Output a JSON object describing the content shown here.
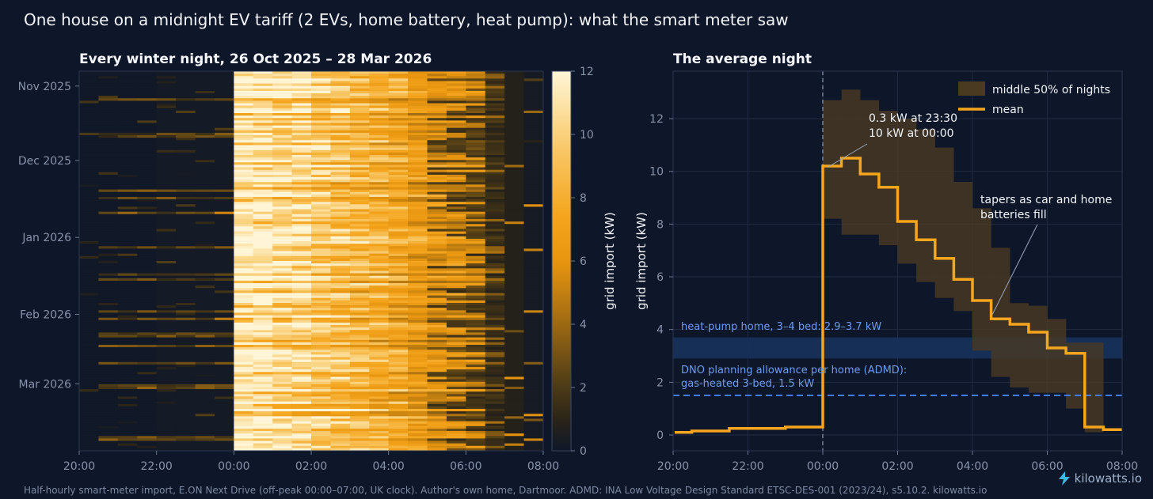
{
  "title": "One house on a midnight EV tariff (2 EVs, home battery, heat pump): what the smart meter saw",
  "footer": "Half-hourly smart-meter import, E.ON Next Drive (off-peak 00:00–07:00, UK clock). Author's own home, Dartmoor. ADMD: INA Low Voltage Design Standard ETSC-DES-001 (2023/24), s5.10.2. kilowatts.io",
  "brand": {
    "name": "kilowatts.io",
    "icon": "lightning-bolt-icon",
    "color": "#3fb8e8"
  },
  "colors": {
    "background": "#0e1729",
    "accent": "#f5a51e",
    "band": "#4a3a22",
    "reference": "#3f7ee8",
    "reference_band": "#17305a"
  },
  "chart_data": [
    {
      "type": "heatmap",
      "title": "Every winter night, 26 Oct 2025 – 28 Mar 2026",
      "x_ticks": [
        "20:00",
        "22:00",
        "00:00",
        "02:00",
        "04:00",
        "06:00",
        "08:00"
      ],
      "y_ticks": [
        "Nov 2025",
        "Dec 2025",
        "Jan 2026",
        "Feb 2026",
        "Mar 2026"
      ],
      "colorbar": {
        "label": "grid import (kW)",
        "ticks": [
          "0",
          "2",
          "4",
          "6",
          "8",
          "10",
          "12"
        ],
        "range": [
          0,
          12
        ]
      },
      "nights": 154,
      "slots_per_night": 24,
      "typical_profile_kw": [
        0.1,
        0.1,
        0.1,
        0.1,
        0.2,
        0.2,
        0.2,
        0.2,
        11.5,
        11.5,
        10.5,
        10.5,
        9.5,
        9.0,
        8.5,
        8.0,
        7.5,
        6.5,
        6.0,
        6.0,
        5.5,
        3.5,
        0.8,
        0.3
      ]
    },
    {
      "type": "line",
      "title": "The average night",
      "ylabel": "grid import (kW)",
      "x_ticks": [
        "20:00",
        "22:00",
        "00:00",
        "02:00",
        "04:00",
        "06:00",
        "08:00"
      ],
      "y_ticks": [
        "0",
        "2",
        "4",
        "6",
        "8",
        "10",
        "12"
      ],
      "ylim": [
        -0.6,
        13.8
      ],
      "xlim": [
        "20:00",
        "08:00"
      ],
      "grid": true,
      "legend": {
        "position": "top-right",
        "items": [
          {
            "label": "middle 50% of nights",
            "kind": "band"
          },
          {
            "label": "mean",
            "kind": "line"
          }
        ]
      },
      "series": [
        {
          "name": "mean",
          "x": [
            "20:00",
            "20:30",
            "21:00",
            "21:30",
            "22:00",
            "22:30",
            "23:00",
            "23:30",
            "00:00",
            "00:30",
            "01:00",
            "01:30",
            "02:00",
            "02:30",
            "03:00",
            "03:30",
            "04:00",
            "04:30",
            "05:00",
            "05:30",
            "06:00",
            "06:30",
            "07:00",
            "07:30"
          ],
          "values": [
            0.1,
            0.15,
            0.15,
            0.25,
            0.25,
            0.25,
            0.3,
            0.3,
            10.2,
            10.5,
            9.9,
            9.4,
            8.1,
            7.4,
            6.7,
            5.9,
            5.1,
            4.4,
            4.2,
            3.9,
            3.3,
            3.1,
            0.3,
            0.2
          ]
        },
        {
          "name": "middle 50% of nights",
          "x": [
            "00:00",
            "00:30",
            "01:00",
            "01:30",
            "02:00",
            "02:30",
            "03:00",
            "03:30",
            "04:00",
            "04:30",
            "05:00",
            "05:30",
            "06:00",
            "06:30",
            "07:00"
          ],
          "low": [
            8.2,
            7.6,
            7.6,
            7.2,
            6.5,
            5.8,
            5.2,
            4.7,
            3.2,
            2.2,
            1.8,
            1.6,
            1.6,
            1.0,
            0.1
          ],
          "high": [
            12.7,
            13.1,
            12.7,
            12.3,
            12.0,
            11.6,
            10.9,
            9.6,
            8.6,
            7.1,
            5.0,
            4.9,
            4.4,
            3.5,
            3.5
          ]
        }
      ],
      "reference": {
        "heat_pump_label": "heat-pump home, 3–4 bed: 2.9–3.7 kW",
        "heat_pump_range": [
          2.9,
          3.7
        ],
        "admd_label_1": "DNO planning allowance per home (ADMD):",
        "admd_label_2": "gas-heated 3-bed, 1.5 kW",
        "admd_value": 1.5,
        "tariff_start": "00:00"
      },
      "annotations": {
        "jump_1": "0.3 kW at 23:30",
        "jump_2": "10 kW at 00:00",
        "taper_1": "tapers as car and home",
        "taper_2": "batteries fill"
      }
    }
  ]
}
